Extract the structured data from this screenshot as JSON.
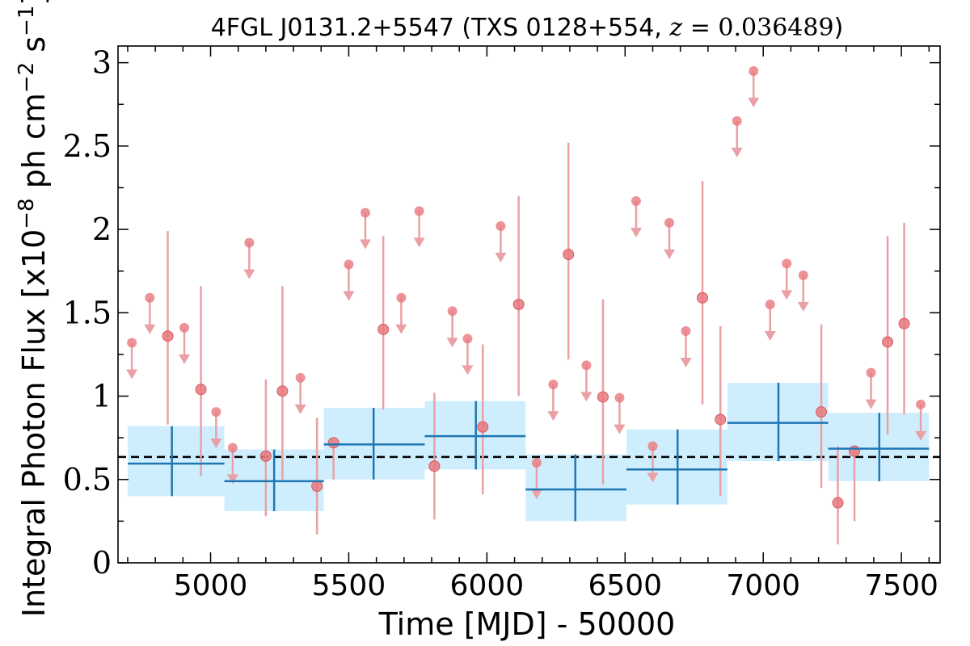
{
  "chart_data": {
    "type": "scatter",
    "title": {
      "prefix": "4FGL J0131.2+5547 (TXS 0128+554, ",
      "math_var": "z",
      "math_eq": " = ",
      "math_val": "0.036489",
      "suffix": ")"
    },
    "xlabel": "Time [MJD] - 50000",
    "ylabel": {
      "main": "Integral Photon Flux [x10",
      "exp1": "−8",
      "mid": " ph cm",
      "exp2": "−2",
      "mid2": " s",
      "exp3": "−1",
      "end": "]"
    },
    "xlim": [
      4665,
      7640
    ],
    "ylim": [
      0,
      3.1
    ],
    "xticks": [
      5000,
      5500,
      6000,
      6500,
      7000,
      7500
    ],
    "yticks": [
      {
        "value": 0,
        "label": "0"
      },
      {
        "value": 0.5,
        "label": "0.5"
      },
      {
        "value": 1,
        "label": "1"
      },
      {
        "value": 1.5,
        "label": "1.5"
      },
      {
        "value": 2,
        "label": "2"
      },
      {
        "value": 2.5,
        "label": "2.5"
      },
      {
        "value": 3,
        "label": "3"
      }
    ],
    "mean_flux": 0.635,
    "colors": {
      "points": "#e8787d",
      "point_stroke": "#d65a63",
      "errorbars": "#e9a1a6",
      "bins": "#1f77b4",
      "band": "#cfeefd",
      "mean_line": "#000000"
    },
    "binned": [
      {
        "x0": 4700,
        "x1": 5050,
        "xc": 4860,
        "y": 0.595,
        "lo": 0.4,
        "hi": 0.82
      },
      {
        "x0": 5050,
        "x1": 5410,
        "xc": 5230,
        "y": 0.49,
        "lo": 0.31,
        "hi": 0.68
      },
      {
        "x0": 5410,
        "x1": 5775,
        "xc": 5590,
        "y": 0.71,
        "lo": 0.5,
        "hi": 0.93
      },
      {
        "x0": 5775,
        "x1": 6140,
        "xc": 5960,
        "y": 0.76,
        "lo": 0.56,
        "hi": 0.97
      },
      {
        "x0": 6140,
        "x1": 6505,
        "xc": 6320,
        "y": 0.44,
        "lo": 0.25,
        "hi": 0.65
      },
      {
        "x0": 6505,
        "x1": 6870,
        "xc": 6690,
        "y": 0.56,
        "lo": 0.35,
        "hi": 0.8
      },
      {
        "x0": 6870,
        "x1": 7235,
        "xc": 7055,
        "y": 0.84,
        "lo": 0.61,
        "hi": 1.08
      },
      {
        "x0": 7235,
        "x1": 7600,
        "xc": 7420,
        "y": 0.685,
        "lo": 0.49,
        "hi": 0.9
      }
    ],
    "detections": [
      {
        "x": 4845,
        "y": 1.36,
        "lo": 0.83,
        "hi": 1.99
      },
      {
        "x": 4965,
        "y": 1.04,
        "lo": 0.52,
        "hi": 1.66
      },
      {
        "x": 5200,
        "y": 0.64,
        "lo": 0.28,
        "hi": 1.1
      },
      {
        "x": 5260,
        "y": 1.03,
        "lo": 0.5,
        "hi": 1.66
      },
      {
        "x": 5385,
        "y": 0.46,
        "lo": 0.17,
        "hi": 0.87
      },
      {
        "x": 5445,
        "y": 0.72,
        "lo": 0.5,
        "hi": 0.72
      },
      {
        "x": 5625,
        "y": 1.4,
        "lo": 0.92,
        "hi": 1.96
      },
      {
        "x": 5810,
        "y": 0.58,
        "lo": 0.26,
        "hi": 1.02
      },
      {
        "x": 5985,
        "y": 0.815,
        "lo": 0.41,
        "hi": 1.31
      },
      {
        "x": 6115,
        "y": 1.55,
        "lo": 1.0,
        "hi": 2.2
      },
      {
        "x": 6295,
        "y": 1.85,
        "lo": 1.22,
        "hi": 2.52
      },
      {
        "x": 6420,
        "y": 0.995,
        "lo": 0.47,
        "hi": 1.58
      },
      {
        "x": 6780,
        "y": 1.59,
        "lo": 0.95,
        "hi": 2.29
      },
      {
        "x": 6845,
        "y": 0.86,
        "lo": 0.4,
        "hi": 1.42
      },
      {
        "x": 7210,
        "y": 0.905,
        "lo": 0.45,
        "hi": 1.43
      },
      {
        "x": 7270,
        "y": 0.36,
        "lo": 0.11,
        "hi": 0.7
      },
      {
        "x": 7330,
        "y": 0.67,
        "lo": 0.25,
        "hi": 0.7
      },
      {
        "x": 7450,
        "y": 1.325,
        "lo": 0.77,
        "hi": 1.96
      },
      {
        "x": 7510,
        "y": 1.435,
        "lo": 0.89,
        "hi": 2.04
      }
    ],
    "upper_limits": [
      {
        "x": 4715,
        "y": 1.32
      },
      {
        "x": 4780,
        "y": 1.59
      },
      {
        "x": 4905,
        "y": 1.41
      },
      {
        "x": 5020,
        "y": 0.905
      },
      {
        "x": 5080,
        "y": 0.69
      },
      {
        "x": 5140,
        "y": 1.92
      },
      {
        "x": 5325,
        "y": 1.11
      },
      {
        "x": 5500,
        "y": 1.79
      },
      {
        "x": 5560,
        "y": 2.1
      },
      {
        "x": 5690,
        "y": 1.59
      },
      {
        "x": 5755,
        "y": 2.11
      },
      {
        "x": 5875,
        "y": 1.51
      },
      {
        "x": 5930,
        "y": 1.345
      },
      {
        "x": 6050,
        "y": 2.02
      },
      {
        "x": 6180,
        "y": 0.6
      },
      {
        "x": 6240,
        "y": 1.07
      },
      {
        "x": 6360,
        "y": 1.185
      },
      {
        "x": 6480,
        "y": 0.99
      },
      {
        "x": 6540,
        "y": 2.17
      },
      {
        "x": 6600,
        "y": 0.7
      },
      {
        "x": 6660,
        "y": 2.04
      },
      {
        "x": 6720,
        "y": 1.39
      },
      {
        "x": 6905,
        "y": 2.65
      },
      {
        "x": 6965,
        "y": 2.95
      },
      {
        "x": 7025,
        "y": 1.55
      },
      {
        "x": 7085,
        "y": 1.795
      },
      {
        "x": 7145,
        "y": 1.725
      },
      {
        "x": 7390,
        "y": 1.14
      },
      {
        "x": 7570,
        "y": 0.95
      }
    ]
  }
}
